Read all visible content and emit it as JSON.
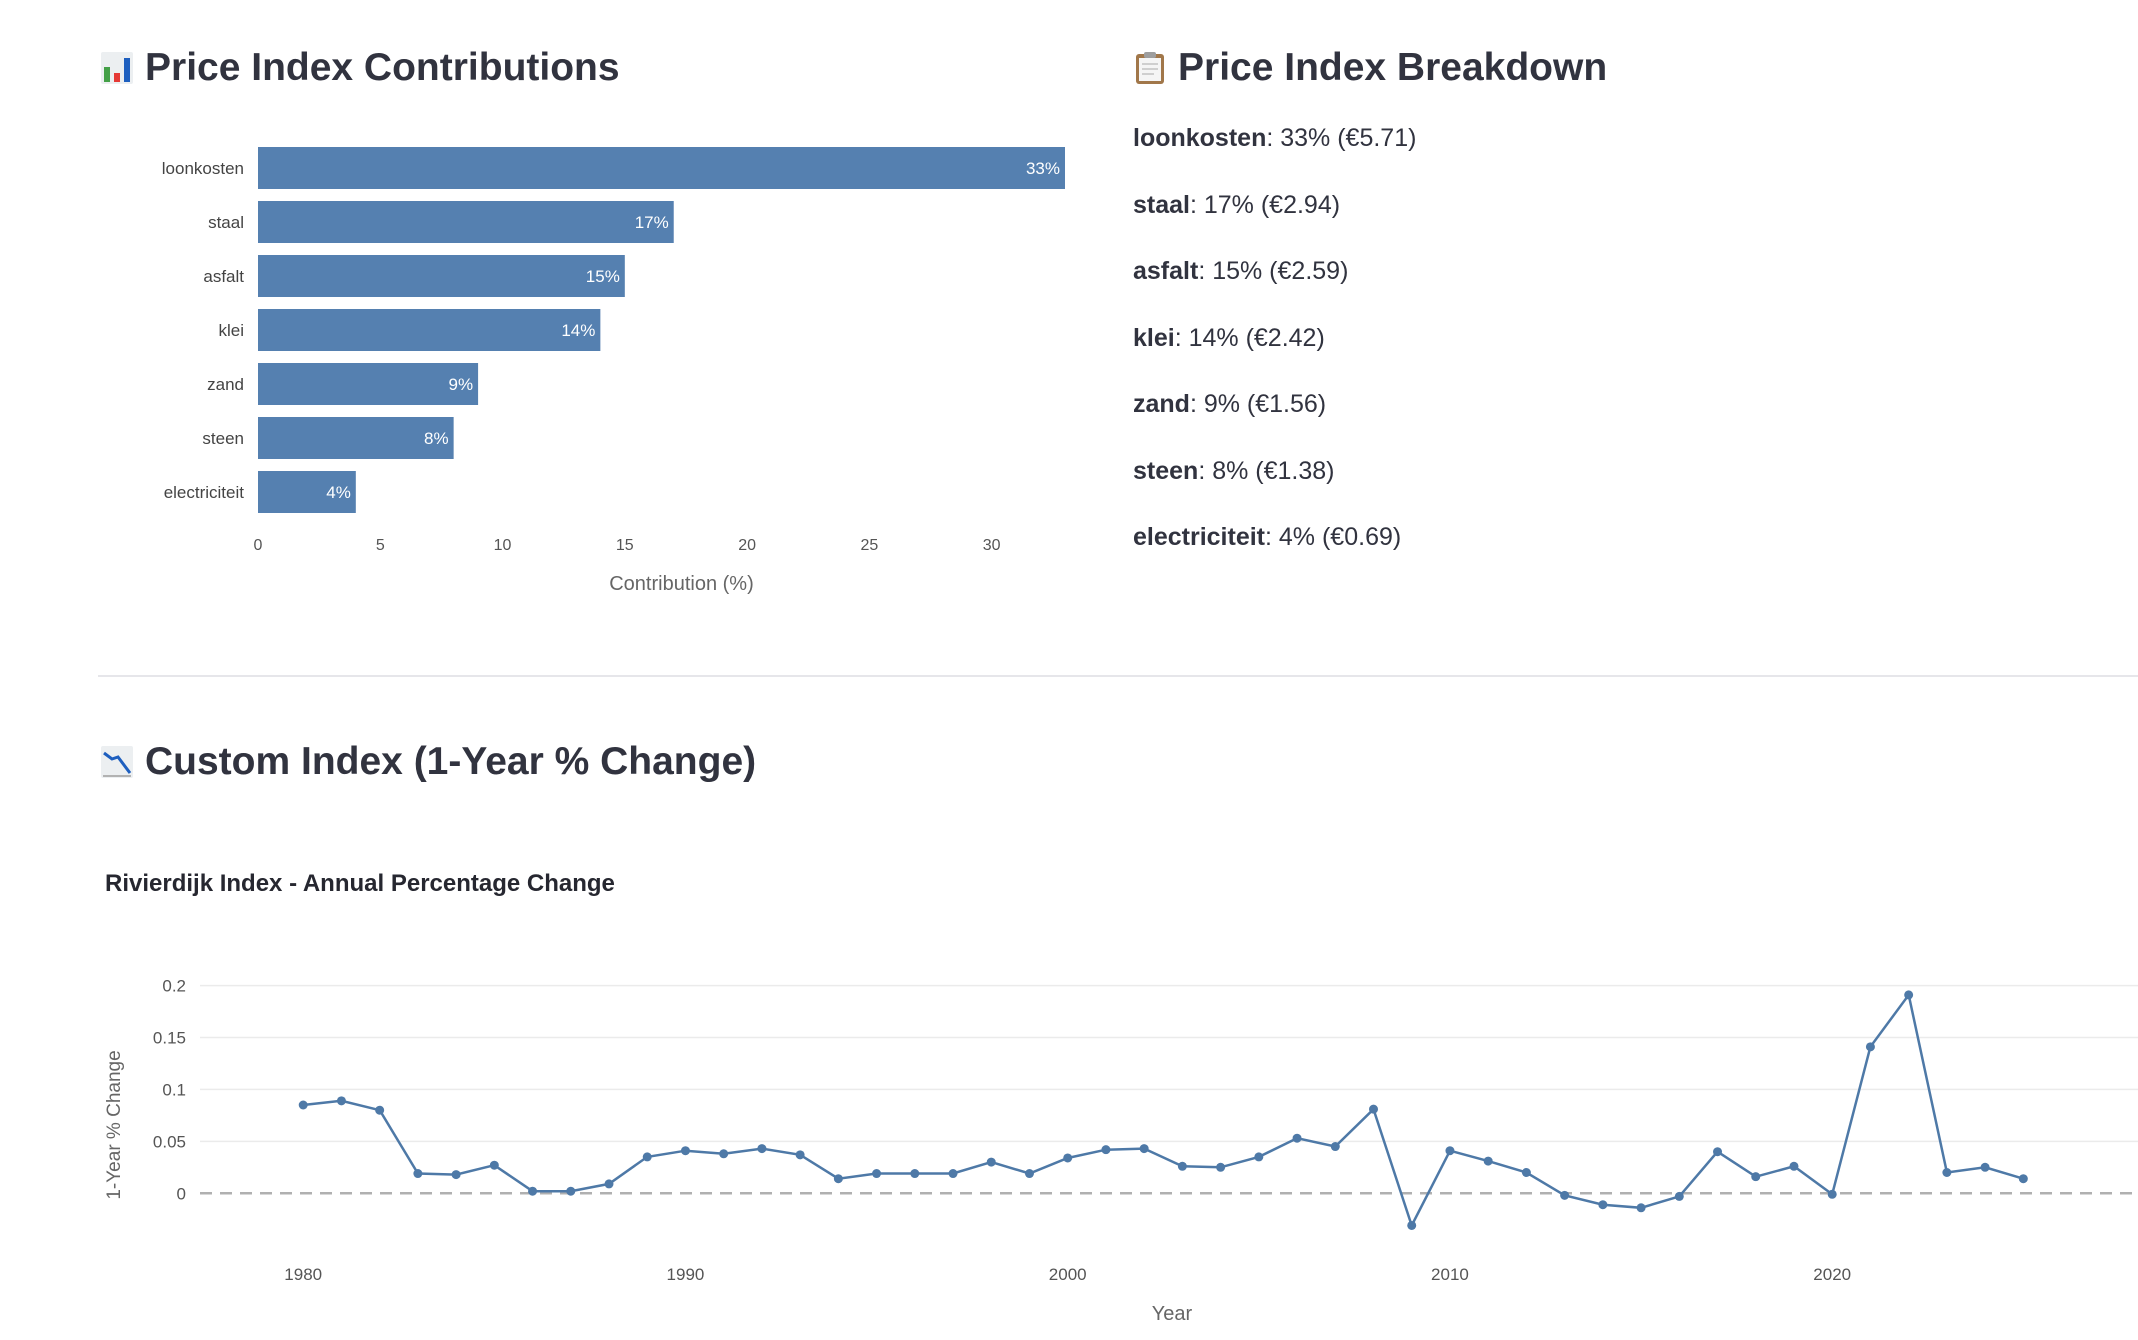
{
  "headings": {
    "contributions": "Price Index Contributions",
    "breakdown": "Price Index Breakdown",
    "custom_index": "Custom Index (1-Year % Change)"
  },
  "icons": {
    "contributions": "bar-chart-icon",
    "breakdown": "clipboard-icon",
    "custom_index": "chart-decreasing-icon"
  },
  "breakdown": [
    {
      "name": "loonkosten",
      "text": ": 33% (€5.71)"
    },
    {
      "name": "staal",
      "text": ": 17% (€2.94)"
    },
    {
      "name": "asfalt",
      "text": ": 15% (€2.59)"
    },
    {
      "name": "klei",
      "text": ": 14% (€2.42)"
    },
    {
      "name": "zand",
      "text": ": 9% (€1.56)"
    },
    {
      "name": "steen",
      "text": ": 8% (€1.38)"
    },
    {
      "name": "electriciteit",
      "text": ": 4% (€0.69)"
    }
  ],
  "chart_data": [
    {
      "type": "bar",
      "orientation": "horizontal",
      "categories": [
        "loonkosten",
        "staal",
        "asfalt",
        "klei",
        "zand",
        "steen",
        "electriciteit"
      ],
      "values": [
        33,
        17,
        15,
        14,
        9,
        8,
        4
      ],
      "data_labels": [
        "33%",
        "17%",
        "15%",
        "14%",
        "9%",
        "8%",
        "4%"
      ],
      "xlabel": "Contribution (%)",
      "xlim": [
        0,
        33
      ],
      "xticks": [
        0,
        5,
        10,
        15,
        20,
        25,
        30
      ],
      "bar_color": "#5580b0"
    },
    {
      "type": "line",
      "title": "Rivierdijk Index - Annual Percentage Change",
      "xlabel": "Year",
      "ylabel": "1-Year % Change",
      "x": [
        1980,
        1981,
        1982,
        1983,
        1984,
        1985,
        1986,
        1987,
        1988,
        1989,
        1990,
        1991,
        1992,
        1993,
        1994,
        1995,
        1996,
        1997,
        1998,
        1999,
        2000,
        2001,
        2002,
        2003,
        2004,
        2005,
        2006,
        2007,
        2008,
        2009,
        2010,
        2011,
        2012,
        2013,
        2014,
        2015,
        2016,
        2017,
        2018,
        2019,
        2020,
        2021,
        2022,
        2023,
        2024,
        2025
      ],
      "y": [
        0.085,
        0.089,
        0.08,
        0.019,
        0.018,
        0.027,
        0.002,
        0.002,
        0.009,
        0.035,
        0.041,
        0.038,
        0.043,
        0.037,
        0.014,
        0.019,
        0.019,
        0.019,
        0.03,
        0.019,
        0.034,
        0.042,
        0.043,
        0.026,
        0.025,
        0.035,
        0.053,
        0.045,
        0.081,
        -0.031,
        0.041,
        0.031,
        0.02,
        -0.002,
        -0.011,
        -0.014,
        -0.003,
        0.04,
        0.016,
        0.026,
        -0.001,
        0.141,
        0.191,
        0.02,
        0.025,
        0.014
      ],
      "xticks": [
        1980,
        1990,
        2000,
        2010,
        2020
      ],
      "yticks": [
        0,
        0.05,
        0.1,
        0.15,
        0.2
      ],
      "xlim": [
        1977.3,
        2028
      ],
      "ylim": [
        -0.045,
        0.215
      ],
      "zero_line": "dashed",
      "line_color": "#4e79a7"
    }
  ]
}
